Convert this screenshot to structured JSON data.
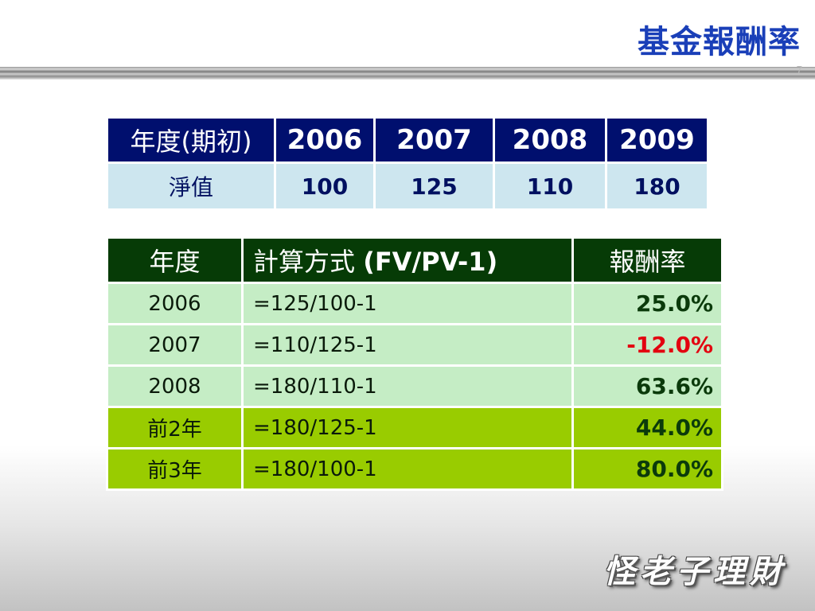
{
  "title": "基金報酬率",
  "page_number": "7",
  "nav_table": {
    "header_label": "年度(期初)",
    "years": [
      "2006",
      "2007",
      "2008",
      "2009"
    ],
    "row_label": "淨值",
    "values": [
      "100",
      "125",
      "110",
      "180"
    ]
  },
  "return_table": {
    "headers": {
      "year": "年度",
      "method_prefix": "計算方式 ",
      "method_formula": "(FV/PV-1)",
      "rate": "報酬率"
    },
    "rows": [
      {
        "period": "2006",
        "formula": "=125/100-1",
        "rate": "25.0%"
      },
      {
        "period": "2007",
        "formula": "=110/125-1",
        "rate": "-12.0%"
      },
      {
        "period": "2008",
        "formula": "=180/110-1",
        "rate": "63.6%"
      },
      {
        "period": "前2年",
        "formula": "=180/125-1",
        "rate": "44.0%"
      },
      {
        "period": "前3年",
        "formula": "=180/100-1",
        "rate": "80.0%"
      }
    ]
  },
  "logo_text": "怪老子理財",
  "colors": {
    "title": "#1a3fb8",
    "nav_header_bg": "#000f6e",
    "nav_row_bg": "#cde6ef",
    "return_header_bg": "#063b06",
    "return_row_bg": "#c5edc5",
    "return_highlight_bg": "#99cc00",
    "negative": "#e3000f"
  }
}
